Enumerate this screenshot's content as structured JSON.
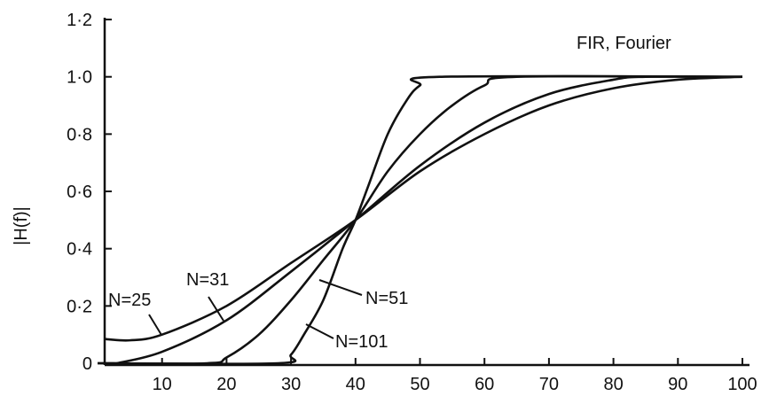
{
  "chart_data": {
    "type": "line",
    "title": "FIR, Fourier",
    "xlabel": "",
    "ylabel": "|H(f)|",
    "xlim": [
      0,
      100
    ],
    "ylim": [
      0,
      1.2
    ],
    "grid": false,
    "xticks": [
      10,
      20,
      30,
      40,
      50,
      60,
      70,
      80,
      90,
      100
    ],
    "xtick_labels": [
      "10",
      "20",
      "30",
      "40",
      "50",
      "60",
      "70",
      "80",
      "90",
      "100"
    ],
    "yticks": [
      0,
      0.2,
      0.4,
      0.6,
      0.8,
      1.0,
      1.2
    ],
    "ytick_labels": [
      "0",
      "0·2",
      "0·4",
      "0·6",
      "0·8",
      "1·0",
      "1·2"
    ],
    "series": [
      {
        "name": "N=25",
        "x": [
          1,
          5,
          10,
          20,
          30,
          40,
          50,
          60,
          70,
          80,
          90,
          100
        ],
        "y": [
          0.085,
          0.08,
          0.1,
          0.2,
          0.35,
          0.5,
          0.67,
          0.8,
          0.9,
          0.96,
          0.99,
          1.0
        ]
      },
      {
        "name": "N=31",
        "x": [
          3,
          10,
          20,
          30,
          40,
          50,
          60,
          70,
          80,
          85,
          100
        ],
        "y": [
          0,
          0.04,
          0.15,
          0.32,
          0.5,
          0.69,
          0.84,
          0.94,
          0.99,
          1.0,
          1.0
        ]
      },
      {
        "name": "N=51",
        "x": [
          0,
          17,
          20,
          25,
          30,
          35,
          40,
          45,
          50,
          55,
          60,
          65,
          100
        ],
        "y": [
          0,
          0,
          0.02,
          0.1,
          0.22,
          0.36,
          0.5,
          0.67,
          0.8,
          0.9,
          0.97,
          1.0,
          1.0
        ]
      },
      {
        "name": "N=101",
        "x": [
          0,
          28,
          30,
          32,
          35,
          38,
          40,
          42,
          45,
          48,
          50,
          53,
          100
        ],
        "y": [
          0,
          0,
          0.03,
          0.1,
          0.22,
          0.4,
          0.5,
          0.62,
          0.8,
          0.92,
          0.97,
          1.0,
          1.0
        ]
      }
    ],
    "annotations": [
      "N=25",
      "N=31",
      "N=51",
      "N=101"
    ]
  }
}
